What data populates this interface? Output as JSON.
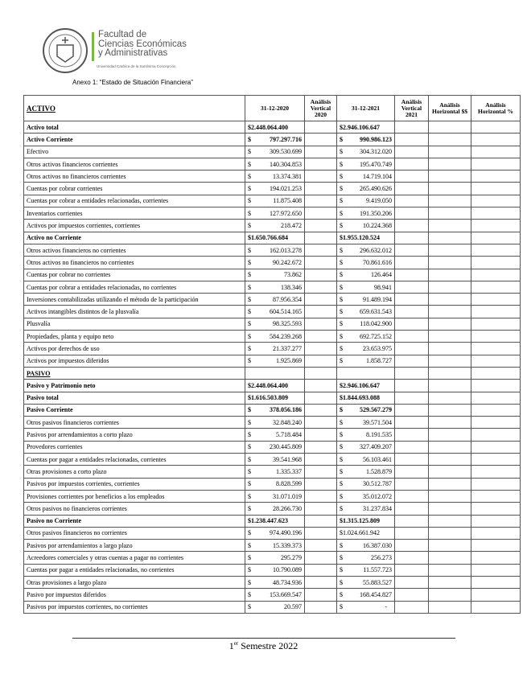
{
  "header": {
    "faculty": [
      "Facultad de",
      "Ciencias Económicas",
      "y Administrativas"
    ],
    "university": "Universidad Católica de la Santísima Concepción",
    "annex": "Anexo 1: “Estado de Situación Financiera”"
  },
  "table": {
    "columns": [
      "ACTIVO",
      "31-12-2020",
      "Análisis Vertical 2020",
      "31-12-2021",
      "Análisis Vertical 2021",
      "Análisis Horizontal $$",
      "Análisis Horizontal %"
    ],
    "currency": "$",
    "rows": [
      {
        "label": "Activo total",
        "v2020": "$2.448.064.400",
        "v2021": "$2.946.106.647",
        "style": "bold"
      },
      {
        "label": "Activo Corriente",
        "v2020": "797.297.716",
        "v2021": "990.986.123",
        "style": "bold"
      },
      {
        "label": "Efectivo",
        "v2020": "309.530.699",
        "v2021": "304.312.020"
      },
      {
        "label": "Otros activos financieros corrientes",
        "v2020": "140.304.853",
        "v2021": "195.470.749"
      },
      {
        "label": "Otros activos no financieros corrientes",
        "v2020": "13.374.381",
        "v2021": "14.719.104"
      },
      {
        "label": "Cuentas por cobrar corrientes",
        "v2020": "194.021.253",
        "v2021": "265.490.626"
      },
      {
        "label": "Cuentas por cobrar a entidades relacionadas, corrientes",
        "v2020": "11.875.408",
        "v2021": "9.419.050"
      },
      {
        "label": "Inventarios corrientes",
        "v2020": "127.972.650",
        "v2021": "191.350.206"
      },
      {
        "label": "Activos por impuestos corrientes, corrientes",
        "v2020": "218.472",
        "v2021": "10.224.368"
      },
      {
        "label": "Activo no Corriente",
        "v2020": "$1.650.766.684",
        "v2021": "$1.955.120.524",
        "style": "bold"
      },
      {
        "label": "Otros activos financieros no corrientes",
        "v2020": "162.013.278",
        "v2021": "296.632.012"
      },
      {
        "label": "Otros activos no financieros no corrientes",
        "v2020": "90.242.672",
        "v2021": "70.861.616"
      },
      {
        "label": "Cuentas por cobrar no corrientes",
        "v2020": "73.862",
        "v2021": "126.464"
      },
      {
        "label": "Cuentas por cobrar a entidades relacionadas, no corrientes",
        "v2020": "138.346",
        "v2021": "98.941"
      },
      {
        "label": "Inversiones contabilizadas utilizando el método de la participación",
        "v2020": "87.956.354",
        "v2021": "91.489.194"
      },
      {
        "label": "Activos intangibles distintos de la plusvalía",
        "v2020": "604.514.165",
        "v2021": "659.631.543"
      },
      {
        "label": "Plusvalía",
        "v2020": "98.325.593",
        "v2021": "118.042.900"
      },
      {
        "label": "Propiedades, planta y equipo neto",
        "v2020": "584.239.268",
        "v2021": "692.725.152"
      },
      {
        "label": "Activos por derechos de uso",
        "v2020": "21.337.277",
        "v2021": "23.653.975"
      },
      {
        "label": "Activos por impuestos diferidos",
        "v2020": "1.925.869",
        "v2021": "1.858.727"
      },
      {
        "label": "PASIVO",
        "v2020": "",
        "v2021": "",
        "style": "heading"
      },
      {
        "label": "Pasivo y Patrimonio neto",
        "v2020": "$2.448.064.400",
        "v2021": "$2.946.106.647",
        "style": "bold"
      },
      {
        "label": "Pasivo total",
        "v2020": "$1.616.503.809",
        "v2021": "$1.844.693.088",
        "style": "bold"
      },
      {
        "label": "Pasivo Corriente",
        "v2020": "378.056.186",
        "v2021": "529.567.279",
        "style": "bold"
      },
      {
        "label": "Otros pasivos financieros corrientes",
        "v2020": "32.848.240",
        "v2021": "39.571.504"
      },
      {
        "label": "Pasivos por arrendamientos a corto plazo",
        "v2020": "5.718.484",
        "v2021": "8.191.535"
      },
      {
        "label": "Provedores corrientes",
        "v2020": "230.445.809",
        "v2021": "327.409.207"
      },
      {
        "label": "Cuentas por pagar a entidades relacionadas, corrientes",
        "v2020": "39.541.968",
        "v2021": "56.103.461"
      },
      {
        "label": "Otras provisiones a corto plazo",
        "v2020": "1.335.337",
        "v2021": "1.528.879"
      },
      {
        "label": "Pasivos por impuestos corrientes, corrientes",
        "v2020": "8.828.599",
        "v2021": "30.512.787"
      },
      {
        "label": "Provisiones corrientes por beneficios a los empleados",
        "v2020": "31.071.019",
        "v2021": "35.012.072"
      },
      {
        "label": "Otros pasivos no financieros corrientes",
        "v2020": "28.266.730",
        "v2021": "31.237.834"
      },
      {
        "label": "Pasivo no Corriente",
        "v2020": "$1.238.447.623",
        "v2021": "$1.315.125.809",
        "style": "bold"
      },
      {
        "label": "Otros pasivos financieros no corrientes",
        "v2020": "974.490.196",
        "v2021": "$1.024.661.942"
      },
      {
        "label": "Pasivos por arrendamientos a largo plazo",
        "v2020": "15.339.373",
        "v2021": "16.387.030"
      },
      {
        "label": "Acreedores comerciales y otras cuentas a pagar no corrientes",
        "v2020": "295.279",
        "v2021": "256.273"
      },
      {
        "label": "Cuentas por pagar a entidades relacionadas, no corrientes",
        "v2020": "10.790.089",
        "v2021": "11.557.723"
      },
      {
        "label": "Otras provisiones a largo plazo",
        "v2020": "48.734.936",
        "v2021": "55.883.527"
      },
      {
        "label": "Pasivo por impuestos diferidos",
        "v2020": "153.669.547",
        "v2021": "168.454.827"
      },
      {
        "label": "Pasivos por impuestos corrientes, no corrientes",
        "v2020": "20.597",
        "v2021": "-"
      }
    ]
  },
  "footer": {
    "ordinal": "1",
    "ordinal_suffix": "er",
    "text": " Semestre 2022"
  }
}
